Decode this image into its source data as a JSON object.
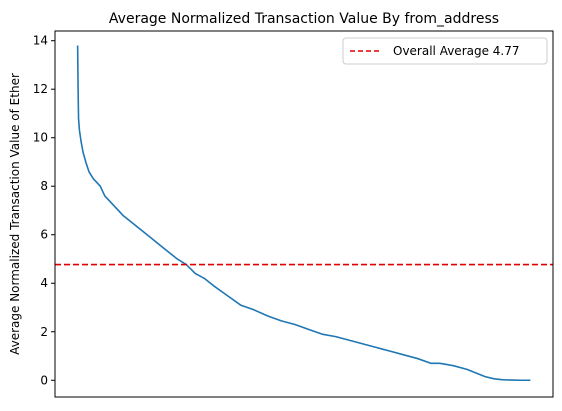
{
  "chart_data": {
    "type": "line",
    "title": "Average Normalized Transaction Value By from_address",
    "xlabel": "",
    "ylabel": "Average Normalized Transaction Value of Ether",
    "ylim": [
      -0.69,
      14.4
    ],
    "xlim": [
      -0.05,
      1.05
    ],
    "yticks": [
      0,
      2,
      4,
      6,
      8,
      10,
      12,
      14
    ],
    "x_ticks_visible": false,
    "grid": false,
    "legend_position": "top-right",
    "series": [
      {
        "name": "",
        "color": "#1f77b4",
        "x": [
          0.0,
          0.001,
          0.002,
          0.004,
          0.008,
          0.012,
          0.018,
          0.025,
          0.035,
          0.05,
          0.06,
          0.075,
          0.09,
          0.1,
          0.12,
          0.14,
          0.16,
          0.18,
          0.2,
          0.22,
          0.24,
          0.26,
          0.28,
          0.3,
          0.33,
          0.36,
          0.39,
          0.42,
          0.45,
          0.48,
          0.51,
          0.54,
          0.57,
          0.6,
          0.63,
          0.66,
          0.69,
          0.72,
          0.75,
          0.78,
          0.8,
          0.83,
          0.86,
          0.88,
          0.9,
          0.92,
          0.94,
          0.96,
          0.98,
          1.0
        ],
        "y": [
          13.8,
          12.0,
          10.8,
          10.3,
          9.8,
          9.4,
          9.0,
          8.6,
          8.3,
          8.0,
          7.6,
          7.3,
          7.0,
          6.8,
          6.5,
          6.2,
          5.9,
          5.6,
          5.3,
          5.0,
          4.77,
          4.4,
          4.2,
          3.9,
          3.5,
          3.1,
          2.9,
          2.65,
          2.45,
          2.3,
          2.1,
          1.9,
          1.8,
          1.65,
          1.5,
          1.35,
          1.2,
          1.05,
          0.9,
          0.7,
          0.7,
          0.6,
          0.45,
          0.3,
          0.15,
          0.06,
          0.02,
          0.01,
          0.0,
          0.0
        ]
      }
    ],
    "reference_line": {
      "value": 4.77,
      "label": "Overall Average 4.77",
      "color": "#e00000",
      "style": "dashed"
    }
  }
}
